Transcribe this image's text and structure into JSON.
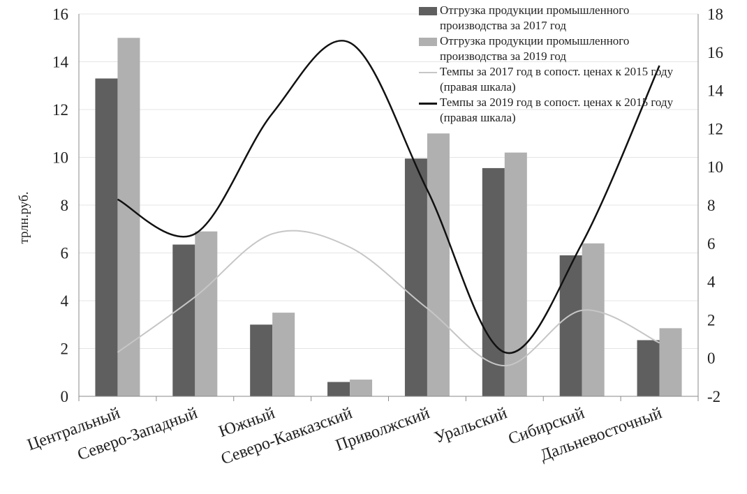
{
  "chart_data": {
    "type": "bar",
    "categories": [
      "Центральный",
      "Северо-Западный",
      "Южный",
      "Северо-Кавказский",
      "Приволжский",
      "Уральский",
      "Сибирский",
      "Дальневосточный"
    ],
    "series": [
      {
        "name": "Отгрузка продукции промышленного производства за 2017 год",
        "kind": "bar",
        "axis": "left",
        "color": "#5f5f5f",
        "values": [
          13.3,
          6.35,
          3.0,
          0.6,
          9.95,
          9.55,
          5.9,
          2.35
        ]
      },
      {
        "name": "Отгрузка продукции промышленного производства за 2019 год",
        "kind": "bar",
        "axis": "left",
        "color": "#b0b0b0",
        "values": [
          15.0,
          6.9,
          3.5,
          0.7,
          11.0,
          10.2,
          6.4,
          2.85
        ]
      },
      {
        "name": "Темпы за 2017 год в сопост. ценах к 2015 году (правая шкала)",
        "kind": "line",
        "axis": "right",
        "color": "#c6c6c6",
        "values": [
          0.3,
          3.2,
          6.5,
          5.8,
          2.6,
          -0.4,
          2.5,
          0.8
        ]
      },
      {
        "name": "Темпы за 2019 год в сопост. ценах к 2015 году (правая шкала)",
        "kind": "line",
        "axis": "right",
        "color": "#111111",
        "values": [
          8.3,
          6.5,
          12.8,
          16.5,
          8.8,
          0.3,
          6.0,
          15.3
        ]
      }
    ],
    "ylabel": "трлн.руб.",
    "ylim": [
      0,
      16
    ],
    "yticks": [
      "0",
      "2",
      "4",
      "6",
      "8",
      "10",
      "12",
      "14",
      "16"
    ],
    "y2lim": [
      -2,
      18
    ],
    "y2ticks": [
      "-2",
      "0",
      "2",
      "4",
      "6",
      "8",
      "10",
      "12",
      "14",
      "16",
      "18"
    ],
    "grid": true,
    "legend": "top-right"
  }
}
